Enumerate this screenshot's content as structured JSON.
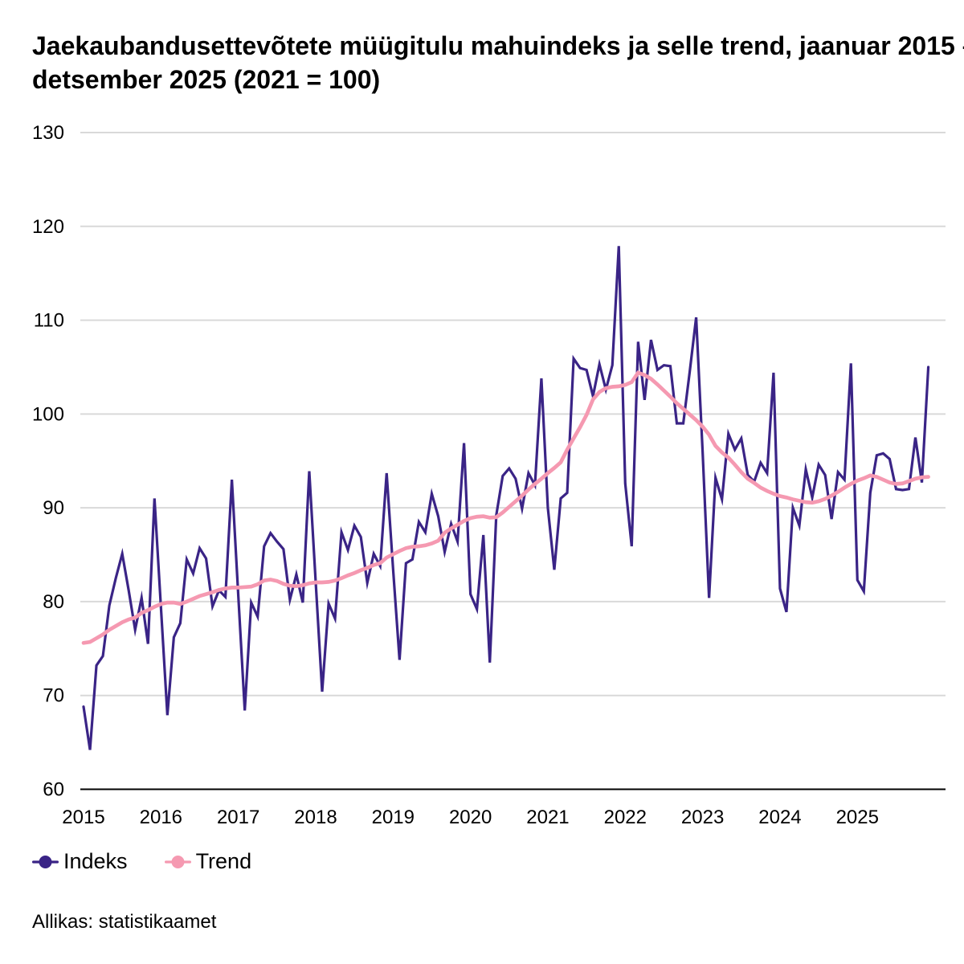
{
  "title": {
    "full": "Jaekaubandusettevõtete müügitulu mahuindeks ja selle trend, jaanuar 2015 – detsember 2025 (2021 = 100)",
    "line1": "Jaekaubandusettevõtete müügitulu mahuindeks ja selle trend, jaanuar 2015 –",
    "line2": "detsember 2025 (2021 = 100)"
  },
  "source_note": "Allikas: statistikaamet",
  "legend": [
    {
      "name": "Indeks",
      "color": "#3a2486"
    },
    {
      "name": "Trend",
      "color": "#f599b1"
    }
  ],
  "chart_data": {
    "type": "line",
    "title": "Jaekaubandusettevõtete müügitulu mahuindeks ja selle trend, jaanuar 2015 – detsember 2025 (2021 = 100)",
    "start_month": "2015-01",
    "end_month": "2025-12",
    "frequency": "monthly",
    "unit": "index, 2021 = 100",
    "xlabel": "",
    "ylabel": "",
    "ylim": [
      60,
      130
    ],
    "yticks": [
      60,
      70,
      80,
      90,
      100,
      110,
      120,
      130
    ],
    "xtick_labels": [
      "2015",
      "2016",
      "2017",
      "2018",
      "2019",
      "2020",
      "2021",
      "2022",
      "2023",
      "2024",
      "2025"
    ],
    "grid": "horizontal",
    "legend_position": "bottom-left",
    "series": [
      {
        "name": "Indeks",
        "color": "#3a2486",
        "line_width": 3.2,
        "values": [
          68.8,
          64.2,
          73.2,
          74.2,
          79.6,
          82.5,
          85.1,
          81.2,
          77.0,
          80.4,
          75.5,
          91.0,
          79.4,
          67.9,
          76.2,
          77.7,
          84.5,
          83.0,
          85.7,
          84.6,
          79.5,
          81.2,
          80.5,
          93.0,
          80.6,
          68.4,
          79.9,
          78.4,
          85.9,
          87.3,
          86.4,
          85.6,
          80.2,
          82.9,
          79.9,
          93.9,
          82.1,
          70.4,
          79.8,
          78.2,
          87.4,
          85.5,
          88.1,
          86.9,
          82.0,
          85.1,
          83.8,
          93.7,
          83.5,
          73.8,
          84.1,
          84.5,
          88.5,
          87.4,
          91.5,
          89.1,
          85.3,
          88.3,
          86.4,
          96.9,
          80.8,
          79.2,
          87.1,
          73.5,
          89.2,
          93.4,
          94.2,
          93.1,
          89.9,
          93.7,
          92.4,
          103.8,
          90.0,
          83.4,
          91.0,
          91.6,
          105.9,
          104.9,
          104.7,
          101.9,
          105.3,
          102.6,
          105.2,
          117.9,
          92.6,
          85.9,
          107.7,
          101.5,
          107.9,
          104.7,
          105.2,
          105.1,
          99.0,
          99.0,
          104.5,
          110.3,
          96.0,
          80.4,
          93.2,
          90.9,
          97.9,
          96.2,
          97.4,
          93.5,
          92.8,
          94.8,
          93.7,
          104.4,
          81.4,
          78.9,
          90.0,
          88.1,
          94.1,
          91.1,
          94.6,
          93.5,
          88.8,
          93.8,
          93.0,
          105.4,
          82.3,
          81.1,
          91.6,
          95.6,
          95.8,
          95.2,
          92.0,
          91.9,
          92.0,
          97.5,
          92.7,
          105.0
        ]
      },
      {
        "name": "Trend",
        "color": "#f599b1",
        "line_width": 4.7,
        "values": [
          75.6,
          75.7,
          76.1,
          76.5,
          77.0,
          77.4,
          77.8,
          78.1,
          78.3,
          78.8,
          79.1,
          79.45,
          79.75,
          79.9,
          79.9,
          79.75,
          80.0,
          80.3,
          80.6,
          80.8,
          81.0,
          81.25,
          81.4,
          81.5,
          81.5,
          81.55,
          81.6,
          81.85,
          82.25,
          82.35,
          82.2,
          81.9,
          81.7,
          81.65,
          81.75,
          81.95,
          82.05,
          82.05,
          82.1,
          82.25,
          82.5,
          82.8,
          83.05,
          83.35,
          83.6,
          83.9,
          84.1,
          84.7,
          85.05,
          85.4,
          85.7,
          85.85,
          85.9,
          86.0,
          86.2,
          86.5,
          87.35,
          87.8,
          88.2,
          88.6,
          88.9,
          89.05,
          89.1,
          88.95,
          89.0,
          89.5,
          90.1,
          90.7,
          91.3,
          91.95,
          92.55,
          93.1,
          93.7,
          94.25,
          94.85,
          96.2,
          97.4,
          98.6,
          99.9,
          101.55,
          102.35,
          102.75,
          102.9,
          102.95,
          103.1,
          103.4,
          104.4,
          104.15,
          103.75,
          103.15,
          102.5,
          101.85,
          101.15,
          100.55,
          99.95,
          99.35,
          98.65,
          97.8,
          96.6,
          95.9,
          95.35,
          94.6,
          93.8,
          93.1,
          92.65,
          92.15,
          91.8,
          91.5,
          91.25,
          91.1,
          90.9,
          90.75,
          90.6,
          90.55,
          90.7,
          90.95,
          91.3,
          91.7,
          92.15,
          92.55,
          92.9,
          93.15,
          93.45,
          93.3,
          93.0,
          92.7,
          92.55,
          92.6,
          92.85,
          93.1,
          93.25,
          93.3
        ]
      }
    ],
    "axis_colors": {
      "grid": "#d9d9d9",
      "axis_line": "#000000",
      "tick_label": "#000000"
    }
  },
  "layout_note": "y-axis labels on left, years under axis, legend below chart, source note at bottom"
}
